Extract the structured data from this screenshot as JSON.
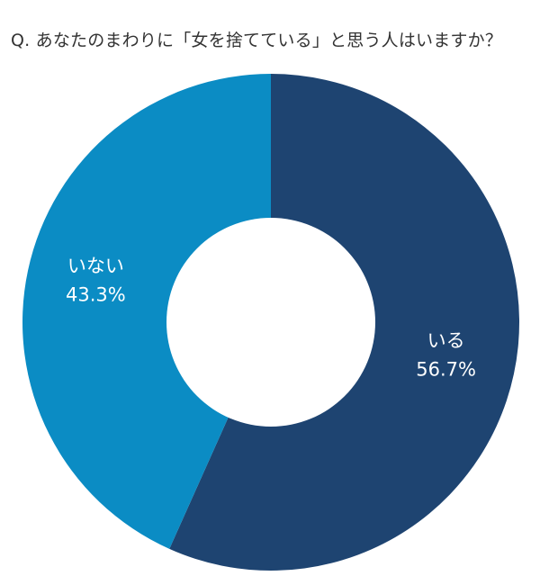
{
  "chart_data": {
    "type": "pie",
    "donut": true,
    "title": "Q. あなたのまわりに「女を捨てている」と思う人はいますか？",
    "categories": [
      "いる",
      "いない"
    ],
    "values": [
      56.7,
      43.3
    ],
    "value_labels": [
      "56.7%",
      "43.3%"
    ],
    "colors": [
      "#1e4471",
      "#0b8cc4"
    ],
    "hole_color": "#ffffff",
    "start_angle_deg": 0,
    "direction": "clockwise"
  }
}
